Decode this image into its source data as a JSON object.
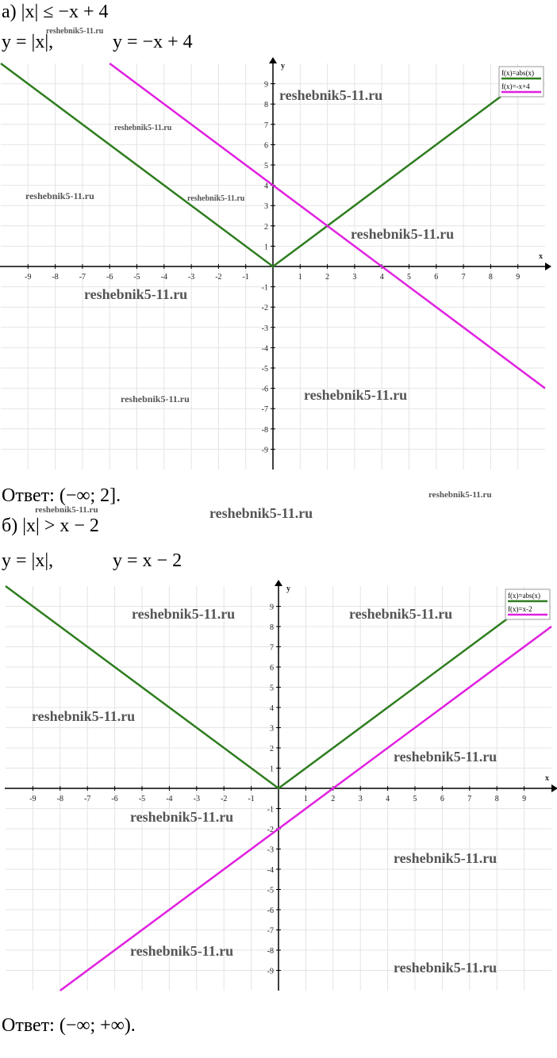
{
  "problems": [
    {
      "statement": "а) |x| ≤ −x + 4",
      "function_1": "y = |x|,",
      "function_2": "y = −x + 4",
      "answer": "Ответ: (−∞; 2]."
    },
    {
      "statement": "б) |x| > x − 2",
      "function_1": "y = |x|,",
      "function_2": "y = x − 2",
      "answer": "Ответ: (−∞;  +∞)."
    }
  ],
  "watermark": "reshebnik5-11.ru",
  "chart_data": [
    {
      "type": "line",
      "x_label": "x",
      "y_label": "y",
      "xlim": [
        -10,
        10
      ],
      "ylim": [
        -10,
        10
      ],
      "xticks": [
        -9,
        -8,
        -7,
        -6,
        -5,
        -4,
        -3,
        -2,
        -1,
        1,
        2,
        3,
        4,
        5,
        6,
        7,
        8,
        9
      ],
      "yticks": [
        -9,
        -8,
        -7,
        -6,
        -5,
        -4,
        -3,
        -2,
        -1,
        1,
        2,
        3,
        4,
        5,
        6,
        7,
        8,
        9
      ],
      "grid": true,
      "legend": "top-right",
      "series": [
        {
          "name": "f(x)=abs(x)",
          "color": "#2e7d1e",
          "x": [
            -10,
            0,
            8.5
          ],
          "values": [
            10,
            0,
            8.5
          ]
        },
        {
          "name": "f(x)=-x+4",
          "color": "#e020e0",
          "x": [
            -6,
            10
          ],
          "values": [
            10,
            -6
          ]
        }
      ]
    },
    {
      "type": "line",
      "x_label": "x",
      "y_label": "y",
      "xlim": [
        -10,
        10
      ],
      "ylim": [
        -10,
        10
      ],
      "xticks": [
        -9,
        -8,
        -7,
        -6,
        -5,
        -4,
        -3,
        -2,
        -1,
        1,
        2,
        3,
        4,
        5,
        6,
        7,
        8,
        9
      ],
      "yticks": [
        -9,
        -8,
        -7,
        -6,
        -5,
        -4,
        -3,
        -2,
        -1,
        1,
        2,
        3,
        4,
        5,
        6,
        7,
        8,
        9
      ],
      "grid": true,
      "legend": "top-right",
      "series": [
        {
          "name": "f(x)=abs(x)",
          "color": "#2e7d1e",
          "x": [
            -10,
            0,
            8.5
          ],
          "values": [
            10,
            0,
            8.5
          ]
        },
        {
          "name": "f(x)=x-2",
          "color": "#e020e0",
          "x": [
            -8,
            10
          ],
          "values": [
            -10,
            8
          ]
        }
      ]
    }
  ]
}
